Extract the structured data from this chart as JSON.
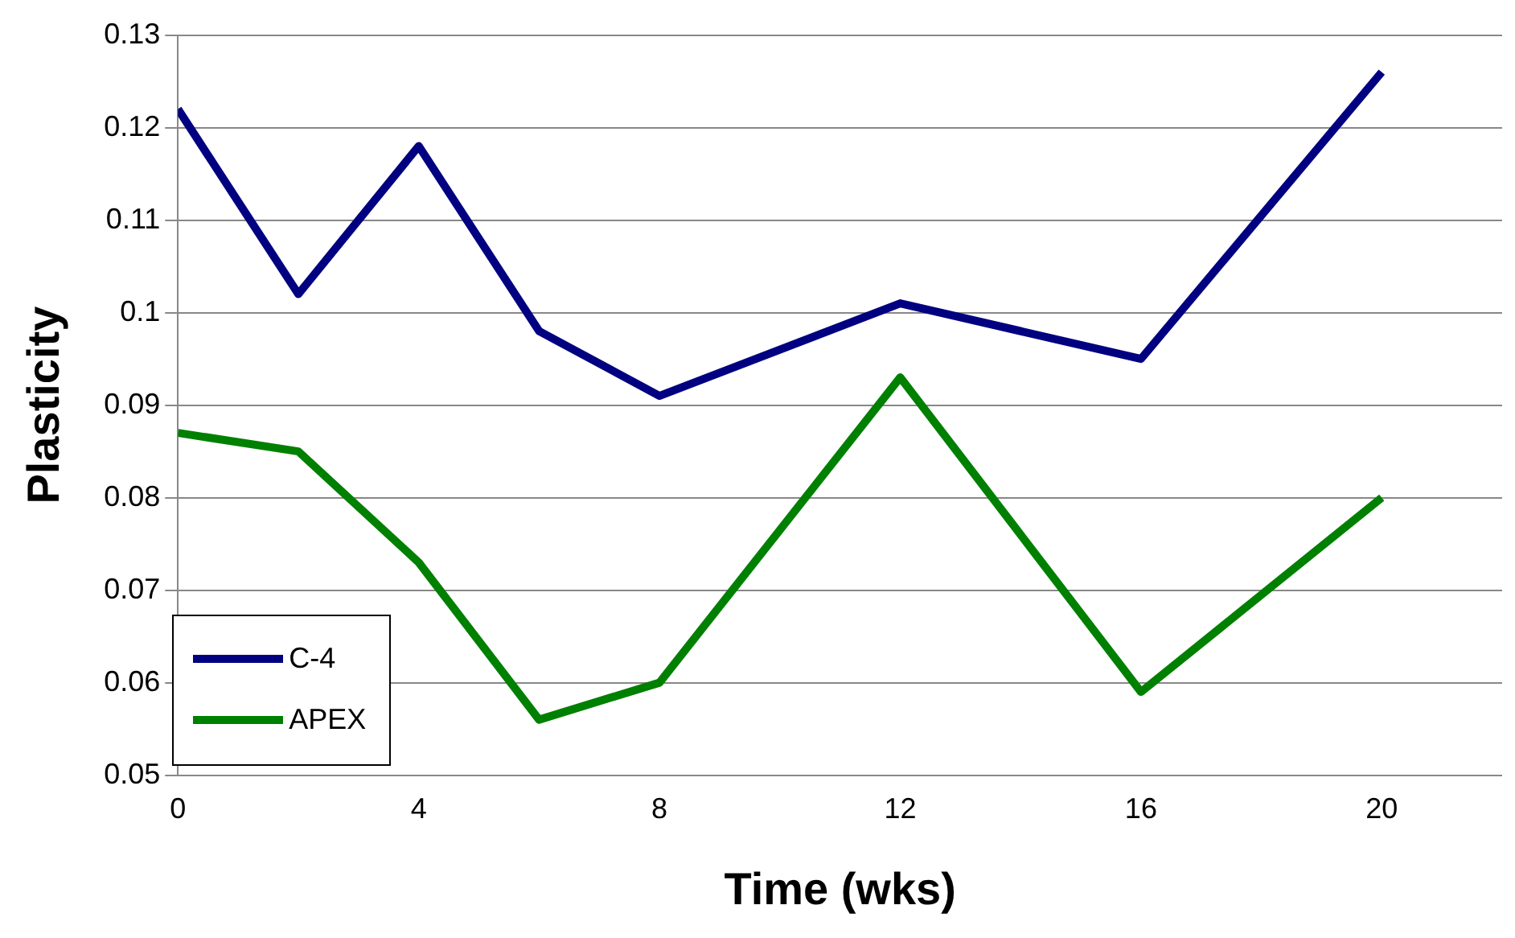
{
  "chart_data": {
    "type": "line",
    "xlabel": "Time (wks)",
    "ylabel": "Plasticity",
    "x": [
      0,
      2,
      4,
      6,
      8,
      12,
      16,
      20
    ],
    "series": [
      {
        "name": "C-4",
        "color": "#000080",
        "values": [
          0.122,
          0.102,
          0.118,
          0.098,
          0.091,
          0.101,
          0.095,
          0.126
        ]
      },
      {
        "name": "APEX",
        "color": "#008000",
        "values": [
          0.087,
          0.085,
          0.073,
          0.056,
          0.06,
          0.093,
          0.059,
          0.08
        ]
      }
    ],
    "xlim": [
      0,
      22
    ],
    "xticks": [
      0,
      4,
      8,
      12,
      16,
      20
    ],
    "ylim": [
      0.05,
      0.13
    ],
    "yticks": [
      0.05,
      0.06,
      0.07,
      0.08,
      0.09,
      0.1,
      0.11,
      0.12,
      0.13
    ],
    "grid": "y",
    "legend": "bottom left"
  }
}
